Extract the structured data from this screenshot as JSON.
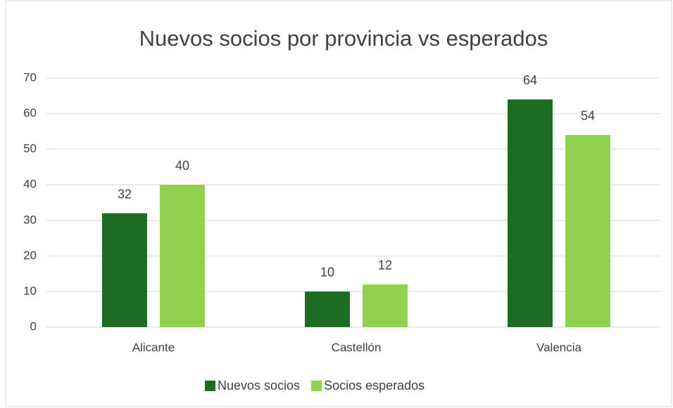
{
  "chart_data": {
    "type": "bar",
    "title": "Nuevos socios por provincia vs esperados",
    "categories": [
      "Alicante",
      "Castellón",
      "Valencia"
    ],
    "series": [
      {
        "name": "Nuevos socios",
        "color": "#1e6b24",
        "values": [
          32,
          10,
          64
        ]
      },
      {
        "name": "Socios esperados",
        "color": "#92d050",
        "values": [
          40,
          12,
          54
        ]
      }
    ],
    "ylim": [
      0,
      70
    ],
    "yticks": [
      0,
      10,
      20,
      30,
      40,
      50,
      60,
      70
    ],
    "grid": true,
    "legend": "bottom"
  }
}
